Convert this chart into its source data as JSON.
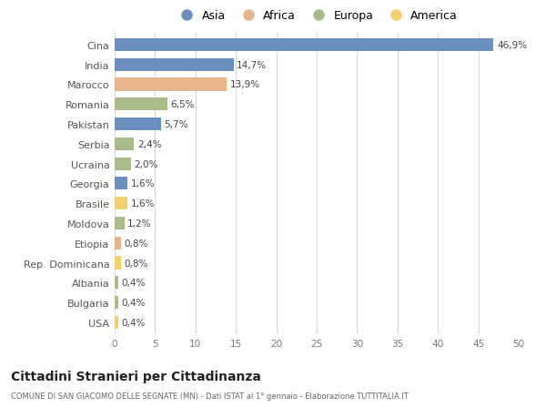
{
  "categories": [
    "Cina",
    "India",
    "Marocco",
    "Romania",
    "Pakistan",
    "Serbia",
    "Ucraina",
    "Georgia",
    "Brasile",
    "Moldova",
    "Etiopia",
    "Rep. Dominicana",
    "Albania",
    "Bulgaria",
    "USA"
  ],
  "values": [
    46.9,
    14.7,
    13.9,
    6.5,
    5.7,
    2.4,
    2.0,
    1.6,
    1.6,
    1.2,
    0.8,
    0.8,
    0.4,
    0.4,
    0.4
  ],
  "labels": [
    "46,9%",
    "14,7%",
    "13,9%",
    "6,5%",
    "5,7%",
    "2,4%",
    "2,0%",
    "1,6%",
    "1,6%",
    "1,2%",
    "0,8%",
    "0,8%",
    "0,4%",
    "0,4%",
    "0,4%"
  ],
  "continents": [
    "Asia",
    "Asia",
    "Africa",
    "Europa",
    "Asia",
    "Europa",
    "Europa",
    "Asia",
    "America",
    "Europa",
    "Africa",
    "America",
    "Europa",
    "Europa",
    "America"
  ],
  "continent_colors": {
    "Asia": "#6b8fbf",
    "Africa": "#e8b48c",
    "Europa": "#a8bc8a",
    "America": "#f0d070"
  },
  "legend_order": [
    "Asia",
    "Africa",
    "Europa",
    "America"
  ],
  "title": "Cittadini Stranieri per Cittadinanza",
  "subtitle": "COMUNE DI SAN GIACOMO DELLE SEGNATE (MN) - Dati ISTAT al 1° gennaio - Elaborazione TUTTITALIA.IT",
  "xlim": [
    0,
    50
  ],
  "xticks": [
    0,
    5,
    10,
    15,
    20,
    25,
    30,
    35,
    40,
    45,
    50
  ],
  "background_color": "#ffffff",
  "grid_color": "#d8d8d8",
  "bar_height": 0.65
}
